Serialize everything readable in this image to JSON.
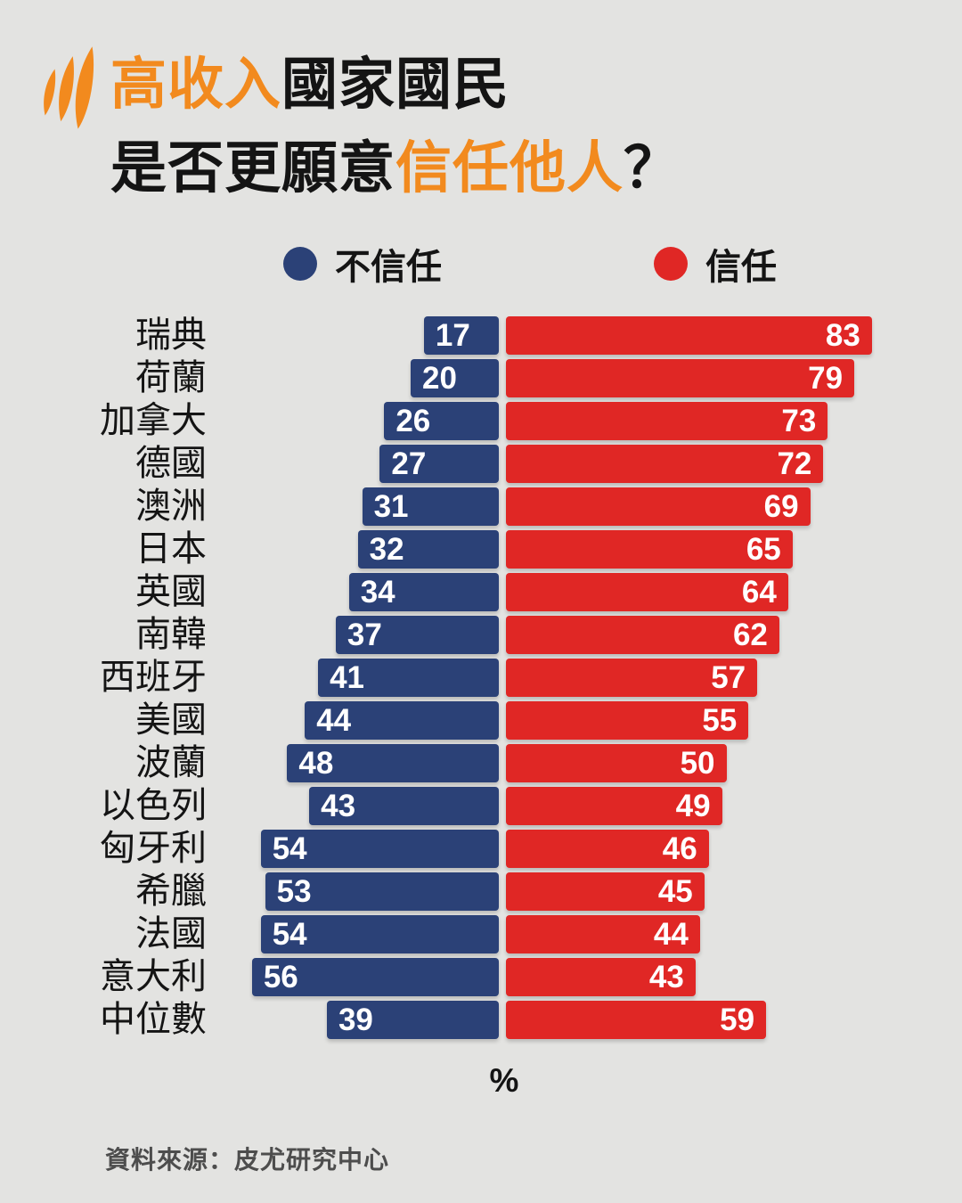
{
  "colors": {
    "background": "#e3e3e1",
    "distrust_navy": "#2b4177",
    "trust_red": "#e02725",
    "accent_orange": "#f28a1e",
    "text_dark": "#141414",
    "source_gray": "#4d4d4d"
  },
  "logo": {
    "name": "sbs-logo"
  },
  "title": {
    "line1_orange": "高收入",
    "line1_dark": "國家國民",
    "line2_dark": "是否更願意",
    "line2_orange": "信任他人",
    "line2_mark": "？"
  },
  "x_axis_label": "%",
  "source": "資料來源：皮尤研究中心",
  "chart_data": {
    "type": "bar",
    "orientation": "horizontal-diverging",
    "title": "高收入國家國民是否更願意信任他人？",
    "categories": [
      "瑞典",
      "荷蘭",
      "加拿大",
      "德國",
      "澳洲",
      "日本",
      "英國",
      "南韓",
      "西班牙",
      "美國",
      "波蘭",
      "以色列",
      "匈牙利",
      "希臘",
      "法國",
      "意大利",
      "中位數"
    ],
    "series": [
      {
        "name": "不信任",
        "color": "#2b4177",
        "values": [
          17,
          20,
          26,
          27,
          31,
          32,
          34,
          37,
          41,
          44,
          48,
          43,
          54,
          53,
          54,
          56,
          39
        ]
      },
      {
        "name": "信任",
        "color": "#e02725",
        "values": [
          83,
          79,
          73,
          72,
          69,
          65,
          64,
          62,
          57,
          55,
          50,
          49,
          46,
          45,
          44,
          43,
          59
        ]
      }
    ],
    "value_unit": "%",
    "axis_max": 83,
    "legend_position": "top",
    "grid": false,
    "value_labels": "inside-bar-ends"
  }
}
